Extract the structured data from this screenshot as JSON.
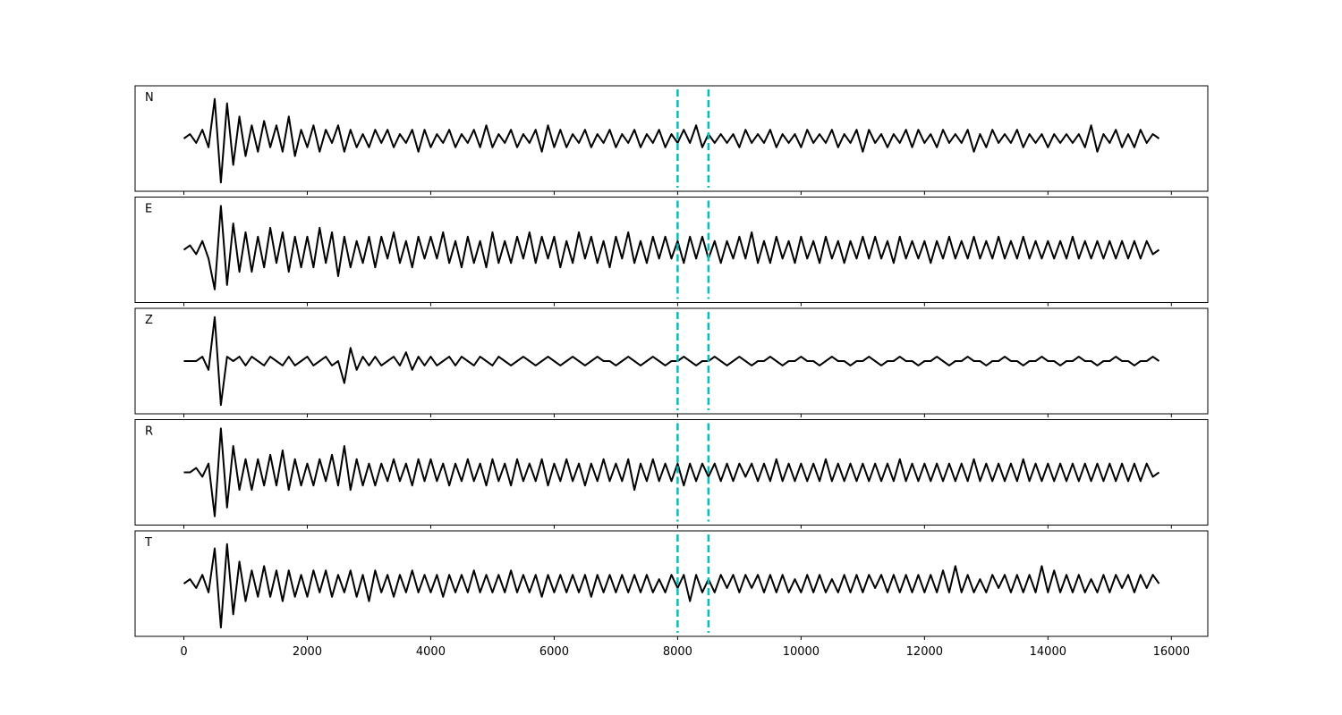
{
  "chart_data": {
    "type": "line",
    "layout": "stacked",
    "x": [
      0,
      100,
      200,
      300,
      400,
      500,
      600,
      700,
      800,
      900,
      1000,
      1100,
      1200,
      1300,
      1400,
      1500,
      1600,
      1700,
      1800,
      1900,
      2000,
      2100,
      2200,
      2300,
      2400,
      2500,
      2600,
      2700,
      2800,
      2900,
      3000,
      3100,
      3200,
      3300,
      3400,
      3500,
      3600,
      3700,
      3800,
      3900,
      4000,
      4100,
      4200,
      4300,
      4400,
      4500,
      4600,
      4700,
      4800,
      4900,
      5000,
      5100,
      5200,
      5300,
      5400,
      5500,
      5600,
      5700,
      5800,
      5900,
      6000,
      6100,
      6200,
      6300,
      6400,
      6500,
      6600,
      6700,
      6800,
      6900,
      7000,
      7100,
      7200,
      7300,
      7400,
      7500,
      7600,
      7700,
      7800,
      7900,
      8000,
      8100,
      8200,
      8300,
      8400,
      8500,
      8600,
      8700,
      8800,
      8900,
      9000,
      9100,
      9200,
      9300,
      9400,
      9500,
      9600,
      9700,
      9800,
      9900,
      10000,
      10100,
      10200,
      10300,
      10400,
      10500,
      10600,
      10700,
      10800,
      10900,
      11000,
      11100,
      11200,
      11300,
      11400,
      11500,
      11600,
      11700,
      11800,
      11900,
      12000,
      12100,
      12200,
      12300,
      12400,
      12500,
      12600,
      12700,
      12800,
      12900,
      13000,
      13100,
      13200,
      13300,
      13400,
      13500,
      13600,
      13700,
      13800,
      13900,
      14000,
      14100,
      14200,
      14300,
      14400,
      14500,
      14600,
      14700,
      14800,
      14900,
      15000,
      15100,
      15200,
      15300,
      15400,
      15500,
      15600,
      15700,
      15800
    ],
    "xlim": [
      -790,
      16590
    ],
    "xticks": [
      0,
      2000,
      4000,
      6000,
      8000,
      10000,
      12000,
      14000,
      16000
    ],
    "ylim": [
      -12,
      12
    ],
    "vlines": [
      8000,
      8500
    ],
    "vline_color": "#00bfbf",
    "series": [
      {
        "name": "N",
        "color": "#000000",
        "values": [
          0,
          1,
          -1,
          2,
          -2,
          9,
          -10,
          8,
          -6,
          5,
          -4,
          3,
          -3,
          4,
          -2,
          3,
          -3,
          5,
          -4,
          2,
          -2,
          3,
          -3,
          2,
          -1,
          3,
          -3,
          2,
          -2,
          1,
          -2,
          2,
          -1,
          2,
          -2,
          1,
          -1,
          2,
          -3,
          2,
          -2,
          1,
          -1,
          2,
          -2,
          1,
          -1,
          2,
          -2,
          3,
          -2,
          1,
          -1,
          2,
          -2,
          1,
          -1,
          2,
          -3,
          3,
          -2,
          2,
          -2,
          1,
          -1,
          2,
          -2,
          1,
          -1,
          2,
          -2,
          1,
          -1,
          2,
          -2,
          1,
          -1,
          2,
          -2,
          1,
          -1,
          2,
          -1,
          3,
          -2,
          1,
          -1,
          1,
          -1,
          1,
          -2,
          2,
          -1,
          1,
          -1,
          2,
          -2,
          1,
          -1,
          1,
          -2,
          2,
          -1,
          1,
          -1,
          2,
          -2,
          1,
          -1,
          2,
          -3,
          2,
          -1,
          1,
          -2,
          1,
          -1,
          2,
          -2,
          2,
          -1,
          1,
          -2,
          2,
          -1,
          1,
          -1,
          2,
          -3,
          1,
          -2,
          2,
          -1,
          1,
          -1,
          2,
          -2,
          1,
          -1,
          1,
          -2,
          1,
          -1,
          1,
          -1,
          1,
          -2,
          3,
          -3,
          1,
          -1,
          2,
          -2,
          1,
          -2,
          2,
          -1,
          1,
          0
        ]
      },
      {
        "name": "E",
        "color": "#000000",
        "values": [
          0,
          1,
          -1,
          2,
          -2,
          -9,
          10,
          -8,
          6,
          -5,
          4,
          -5,
          3,
          -4,
          5,
          -3,
          4,
          -5,
          3,
          -4,
          3,
          -4,
          5,
          -3,
          4,
          -6,
          3,
          -4,
          2,
          -3,
          3,
          -4,
          3,
          -2,
          4,
          -3,
          2,
          -4,
          3,
          -2,
          3,
          -2,
          4,
          -3,
          2,
          -4,
          3,
          -3,
          2,
          -4,
          4,
          -3,
          2,
          -3,
          3,
          -2,
          4,
          -3,
          3,
          -2,
          3,
          -4,
          2,
          -3,
          4,
          -2,
          3,
          -3,
          2,
          -4,
          3,
          -2,
          4,
          -3,
          2,
          -3,
          3,
          -2,
          3,
          -2,
          2,
          -3,
          3,
          -2,
          3,
          -2,
          2,
          -3,
          2,
          -2,
          3,
          -2,
          4,
          -3,
          2,
          -3,
          3,
          -2,
          2,
          -3,
          3,
          -2,
          2,
          -3,
          3,
          -2,
          2,
          -3,
          2,
          -2,
          3,
          -2,
          3,
          -2,
          2,
          -3,
          3,
          -2,
          2,
          -2,
          2,
          -3,
          2,
          -2,
          3,
          -2,
          2,
          -2,
          3,
          -2,
          2,
          -2,
          3,
          -2,
          2,
          -2,
          3,
          -2,
          2,
          -2,
          2,
          -2,
          2,
          -2,
          3,
          -2,
          2,
          -2,
          2,
          -2,
          2,
          -2,
          2,
          -2,
          2,
          -2,
          2,
          -1,
          0
        ]
      },
      {
        "name": "Z",
        "color": "#000000",
        "values": [
          0,
          0,
          0,
          1,
          -2,
          10,
          -10,
          1,
          0,
          1,
          -1,
          1,
          0,
          -1,
          1,
          0,
          -1,
          1,
          -1,
          0,
          1,
          -1,
          0,
          1,
          -1,
          0,
          -5,
          3,
          -2,
          1,
          -1,
          1,
          -1,
          0,
          1,
          -1,
          2,
          -2,
          1,
          -1,
          1,
          -1,
          0,
          1,
          -1,
          1,
          0,
          -1,
          1,
          0,
          -1,
          1,
          0,
          -1,
          0,
          1,
          0,
          -1,
          0,
          1,
          0,
          -1,
          0,
          1,
          0,
          -1,
          0,
          1,
          0,
          0,
          -1,
          0,
          1,
          0,
          -1,
          0,
          1,
          0,
          -1,
          0,
          0,
          1,
          0,
          -1,
          0,
          0,
          1,
          0,
          -1,
          0,
          1,
          0,
          -1,
          0,
          0,
          1,
          0,
          -1,
          0,
          0,
          1,
          0,
          0,
          -1,
          0,
          1,
          0,
          0,
          -1,
          0,
          0,
          1,
          0,
          -1,
          0,
          0,
          1,
          0,
          0,
          -1,
          0,
          0,
          1,
          0,
          -1,
          0,
          0,
          1,
          0,
          0,
          -1,
          0,
          0,
          1,
          0,
          0,
          -1,
          0,
          0,
          1,
          0,
          0,
          -1,
          0,
          0,
          1,
          0,
          0,
          -1,
          0,
          0,
          1,
          0,
          0,
          -1,
          0,
          0,
          1,
          0
        ]
      },
      {
        "name": "R",
        "color": "#000000",
        "values": [
          0,
          0,
          1,
          -1,
          2,
          -10,
          10,
          -8,
          6,
          -4,
          3,
          -4,
          3,
          -3,
          4,
          -3,
          5,
          -4,
          3,
          -3,
          2,
          -3,
          3,
          -2,
          4,
          -3,
          6,
          -4,
          3,
          -3,
          2,
          -3,
          2,
          -2,
          3,
          -2,
          2,
          -3,
          3,
          -2,
          3,
          -2,
          2,
          -3,
          2,
          -2,
          3,
          -2,
          2,
          -3,
          3,
          -2,
          2,
          -3,
          3,
          -2,
          2,
          -2,
          3,
          -3,
          2,
          -2,
          3,
          -2,
          2,
          -3,
          2,
          -2,
          3,
          -2,
          2,
          -2,
          3,
          -4,
          2,
          -2,
          3,
          -2,
          2,
          -2,
          2,
          -3,
          2,
          -2,
          2,
          -1,
          2,
          -2,
          2,
          -2,
          2,
          -1,
          2,
          -2,
          2,
          -2,
          3,
          -2,
          2,
          -2,
          2,
          -2,
          2,
          -2,
          3,
          -2,
          2,
          -2,
          2,
          -2,
          2,
          -2,
          2,
          -2,
          2,
          -2,
          3,
          -2,
          2,
          -2,
          2,
          -2,
          2,
          -2,
          2,
          -2,
          2,
          -2,
          3,
          -2,
          2,
          -2,
          2,
          -2,
          2,
          -2,
          3,
          -2,
          2,
          -2,
          2,
          -2,
          2,
          -2,
          2,
          -2,
          2,
          -2,
          2,
          -2,
          2,
          -2,
          2,
          -2,
          2,
          -2,
          2,
          -1,
          0
        ]
      },
      {
        "name": "T",
        "color": "#000000",
        "values": [
          0,
          1,
          -1,
          2,
          -2,
          8,
          -10,
          9,
          -7,
          5,
          -4,
          3,
          -3,
          4,
          -3,
          3,
          -4,
          3,
          -3,
          2,
          -3,
          3,
          -2,
          3,
          -3,
          2,
          -2,
          3,
          -3,
          2,
          -4,
          3,
          -2,
          2,
          -3,
          2,
          -2,
          3,
          -2,
          2,
          -2,
          2,
          -3,
          2,
          -2,
          2,
          -2,
          3,
          -2,
          2,
          -2,
          2,
          -2,
          3,
          -2,
          2,
          -2,
          2,
          -3,
          2,
          -2,
          2,
          -2,
          2,
          -2,
          2,
          -3,
          2,
          -2,
          2,
          -2,
          2,
          -2,
          2,
          -2,
          2,
          -2,
          1,
          -2,
          2,
          -1,
          2,
          -4,
          2,
          -2,
          1,
          -2,
          2,
          -1,
          2,
          -2,
          2,
          -1,
          2,
          -2,
          2,
          -2,
          2,
          -2,
          1,
          -2,
          2,
          -2,
          2,
          -2,
          1,
          -2,
          2,
          -2,
          2,
          -2,
          2,
          -1,
          2,
          -2,
          2,
          -2,
          2,
          -2,
          2,
          -2,
          2,
          -2,
          3,
          -2,
          4,
          -2,
          2,
          -2,
          1,
          -2,
          2,
          -1,
          2,
          -2,
          2,
          -2,
          2,
          -2,
          4,
          -2,
          3,
          -2,
          2,
          -2,
          2,
          -2,
          1,
          -2,
          2,
          -2,
          2,
          -1,
          2,
          -2,
          2,
          -1,
          2,
          0
        ]
      }
    ]
  }
}
